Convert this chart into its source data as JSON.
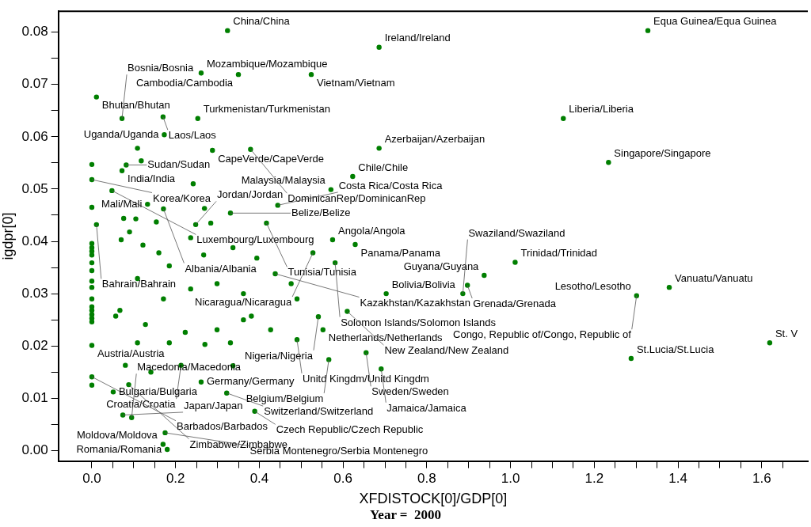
{
  "chart_data": {
    "type": "scatter",
    "title": "Year =  2000",
    "xlabel": "XFDISTOCK[0]/GDP[0]",
    "ylabel": "igdpr[0]",
    "color": "#007f00",
    "marker": "circle",
    "grid": false,
    "legend": false,
    "xlim": [
      -0.08,
      1.71
    ],
    "ylim": [
      -0.002,
      0.084
    ],
    "xticks": [
      {
        "value": 0,
        "label": "0.0"
      },
      {
        "value": 0.05,
        "label": null
      },
      {
        "value": 0.1,
        "label": null
      },
      {
        "value": 0.15,
        "label": null
      },
      {
        "value": 0.2,
        "label": "0.2"
      },
      {
        "value": 0.25,
        "label": null
      },
      {
        "value": 0.3,
        "label": null
      },
      {
        "value": 0.35,
        "label": null
      },
      {
        "value": 0.4,
        "label": "0.4"
      },
      {
        "value": 0.45,
        "label": null
      },
      {
        "value": 0.5,
        "label": null
      },
      {
        "value": 0.55,
        "label": null
      },
      {
        "value": 0.6,
        "label": "0.6"
      },
      {
        "value": 0.65,
        "label": null
      },
      {
        "value": 0.7,
        "label": null
      },
      {
        "value": 0.75,
        "label": null
      },
      {
        "value": 0.8,
        "label": "0.8"
      },
      {
        "value": 0.85,
        "label": null
      },
      {
        "value": 0.9,
        "label": null
      },
      {
        "value": 0.95,
        "label": null
      },
      {
        "value": 1,
        "label": "1.0"
      },
      {
        "value": 1.05,
        "label": null
      },
      {
        "value": 1.1,
        "label": null
      },
      {
        "value": 1.15,
        "label": null
      },
      {
        "value": 1.2,
        "label": "1.2"
      },
      {
        "value": 1.25,
        "label": null
      },
      {
        "value": 1.3,
        "label": null
      },
      {
        "value": 1.35,
        "label": null
      },
      {
        "value": 1.4,
        "label": "1.4"
      },
      {
        "value": 1.45,
        "label": null
      },
      {
        "value": 1.5,
        "label": null
      },
      {
        "value": 1.55,
        "label": null
      },
      {
        "value": 1.6,
        "label": "1.6"
      },
      {
        "value": 1.65,
        "label": null
      }
    ],
    "yticks": [
      {
        "value": 0,
        "label": "0.00"
      },
      {
        "value": 0.005,
        "label": null
      },
      {
        "value": 0.01,
        "label": "0.01"
      },
      {
        "value": 0.015,
        "label": null
      },
      {
        "value": 0.02,
        "label": "0.02"
      },
      {
        "value": 0.025,
        "label": null
      },
      {
        "value": 0.03,
        "label": "0.03"
      },
      {
        "value": 0.035,
        "label": null
      },
      {
        "value": 0.04,
        "label": "0.04"
      },
      {
        "value": 0.045,
        "label": null
      },
      {
        "value": 0.05,
        "label": "0.05"
      },
      {
        "value": 0.055,
        "label": null
      },
      {
        "value": 0.06,
        "label": "0.06"
      },
      {
        "value": 0.065,
        "label": null
      },
      {
        "value": 0.07,
        "label": "0.07"
      },
      {
        "value": 0.075,
        "label": null
      },
      {
        "value": 0.08,
        "label": "0.08"
      }
    ],
    "x": [
      0.324,
      0.686,
      0.261,
      0.35,
      0.524,
      0.011,
      0.072,
      0.17,
      0.253,
      0.173,
      0.109,
      0.288,
      0.379,
      0.686,
      0,
      0.082,
      0.072,
      0,
      0.623,
      0.048,
      0.571,
      0,
      0.133,
      0.171,
      0.269,
      0.444,
      0.331,
      0.011,
      0.076,
      0.105,
      0.248,
      0.284,
      0.417,
      0.154,
      0.242,
      0.118,
      1.328,
      1.126,
      1.234,
      1.011,
      0.937,
      0.897,
      0.886,
      1.301,
      1.379,
      1.288,
      1.619,
      0,
      0,
      0,
      0,
      0,
      0,
      0,
      0,
      0,
      0,
      0,
      0,
      0,
      0,
      0,
      0,
      0,
      0.575,
      0.629,
      0.07,
      0.09,
      0.438,
      0.581,
      0.703,
      0.61,
      0.541,
      0.381,
      0.067,
      0.057,
      0.27,
      0.08,
      0.213,
      0.337,
      0.141,
      0.261,
      0.088,
      0.051,
      0.322,
      0.389,
      0.074,
      0.175,
      0.128,
      0.223,
      0.299,
      0.362,
      0.171,
      0.236,
      0.109,
      0.299,
      0.362,
      0.49,
      0.185,
      0.267,
      0.394,
      0.16,
      0.122,
      0.236,
      0.337,
      0.476,
      0.528,
      0.552,
      0.427,
      0.49,
      0.331,
      0.109,
      0.185,
      0.655,
      0.566,
      0.691,
      0.095,
      0.17,
      0.18
    ],
    "values": [
      0.0803,
      0.0771,
      0.0722,
      0.0719,
      0.0719,
      0.0676,
      0.0635,
      0.0638,
      0.0635,
      0.0604,
      0.0578,
      0.0574,
      0.0576,
      0.0578,
      0.0547,
      0.0546,
      0.0535,
      0.0518,
      0.0524,
      0.0497,
      0.0499,
      0.0465,
      0.0471,
      0.0462,
      0.0463,
      0.0469,
      0.0454,
      0.0432,
      0.0444,
      0.0443,
      0.0432,
      0.0435,
      0.0435,
      0.0437,
      0.051,
      0.0554,
      0.0803,
      0.0635,
      0.0551,
      0.036,
      0.0335,
      0.0316,
      0.03,
      0.0296,
      0.0312,
      0.0176,
      0.0206,
      0.0396,
      0.0388,
      0.0381,
      0.0374,
      0.0359,
      0.0344,
      0.0324,
      0.0312,
      0.029,
      0.0275,
      0.0268,
      0.026,
      0.0253,
      0.0246,
      0.0201,
      0.0141,
      0.0125,
      0.0403,
      0.0394,
      0.0403,
      0.0418,
      0.0338,
      0.0359,
      0.03,
      0.0266,
      0.0256,
      0.0257,
      0.0268,
      0.0257,
      0.0203,
      0.0163,
      0.0163,
      0.0162,
      0.015,
      0.0131,
      0.0126,
      0.0112,
      0.011,
      0.0075,
      0.0068,
      0.0034,
      0.0241,
      0.0226,
      0.0231,
      0.025,
      0.029,
      0.0309,
      0.0329,
      0.0319,
      0.03,
      0.029,
      0.0353,
      0.0374,
      0.0368,
      0.0378,
      0.0393,
      0.0407,
      0.0388,
      0.0319,
      0.0378,
      0.0231,
      0.0231,
      0.0212,
      0.0206,
      0.0206,
      0.0206,
      0.0187,
      0.0174,
      0.0156,
      0.0063,
      0.0012,
      0.0002
    ],
    "annotations": [
      {
        "text": "China/China",
        "x": 0.324,
        "y": 0.0803
      },
      {
        "text": "Equa Guinea/Equa Guinea",
        "x": 1.328,
        "y": 0.0803
      },
      {
        "text": "Ireland/Ireland",
        "x": 0.686,
        "y": 0.0771
      },
      {
        "text": "Cambodia/Cambodia",
        "x": 0.35,
        "y": 0.0719
      },
      {
        "text": "Mozambique/Mozambique",
        "x": 0.261,
        "y": 0.0722
      },
      {
        "text": "Vietnam/Vietnam",
        "x": 0.524,
        "y": 0.0719
      },
      {
        "text": "Bhutan/Bhutan",
        "x": 0.011,
        "y": 0.0676
      },
      {
        "text": "Bosnia/Bosnia",
        "x": 0.072,
        "y": 0.0635
      },
      {
        "text": "Laos/Laos",
        "x": 0.17,
        "y": 0.0638
      },
      {
        "text": "Uganda/Uganda",
        "x": 0.173,
        "y": 0.0604
      },
      {
        "text": "Turkmenistan/Turkmenistan",
        "x": 0.253,
        "y": 0.0635
      },
      {
        "text": "Liberia/Liberia",
        "x": 1.126,
        "y": 0.0635
      },
      {
        "text": "Azerbaijan/Azerbaijan",
        "x": 0.686,
        "y": 0.0578
      },
      {
        "text": "Singapore/Singapore",
        "x": 1.234,
        "y": 0.0551
      },
      {
        "text": "India/India",
        "x": 0.072,
        "y": 0.0535
      },
      {
        "text": "Sudan/Sudan",
        "x": 0.082,
        "y": 0.0546
      },
      {
        "text": "CapeVerde/CapeVerde",
        "x": 0.288,
        "y": 0.0574
      },
      {
        "text": "DominicanRep/DominicanRep",
        "x": 0.379,
        "y": 0.0576
      },
      {
        "text": "Chile/Chile",
        "x": 0.623,
        "y": 0.0524
      },
      {
        "text": "Malaysia/Malaysia",
        "x": 0.571,
        "y": 0.0499
      },
      {
        "text": "Korea/Korea",
        "x": 0,
        "y": 0.0518
      },
      {
        "text": "Luxembourg/Luxembourg",
        "x": 0.048,
        "y": 0.0497
      },
      {
        "text": "Albania/Albania",
        "x": 0.171,
        "y": 0.0462
      },
      {
        "text": "Belize/Belize",
        "x": 0.331,
        "y": 0.0454
      },
      {
        "text": "Costa Rica/Costa Rica",
        "x": 0.444,
        "y": 0.0469
      },
      {
        "text": "Mali/Mali",
        "x": 0.133,
        "y": 0.0471
      },
      {
        "text": "Bahrain/Bahrain",
        "x": 0.011,
        "y": 0.0432
      },
      {
        "text": "Jordan/Jordan",
        "x": 0.248,
        "y": 0.0432
      },
      {
        "text": "Tunisia/Tunisia",
        "x": 0.417,
        "y": 0.0435
      },
      {
        "text": "Angola/Angola",
        "x": 0.575,
        "y": 0.0403
      },
      {
        "text": "Nicaragua/Nicaragua",
        "x": 0.528,
        "y": 0.0378
      },
      {
        "text": "Panama/Panama",
        "x": 0.629,
        "y": 0.0394
      },
      {
        "text": "Solomon Islands/Solomon Islands",
        "x": 0.581,
        "y": 0.0359
      },
      {
        "text": "Guyana/Guyana",
        "x": 0.937,
        "y": 0.0335
      },
      {
        "text": "Trinidad/Trinidad",
        "x": 1.011,
        "y": 0.036
      },
      {
        "text": "Bolivia/Bolivia",
        "x": 0.703,
        "y": 0.03
      },
      {
        "text": "Kazakhstan/Kazakhstan",
        "x": 0.438,
        "y": 0.0338
      },
      {
        "text": "Congo, Republic of/Congo, Republic of",
        "x": 1.301,
        "y": 0.0296
      },
      {
        "text": "Vanuatu/Vanuatu",
        "x": 1.379,
        "y": 0.0312
      },
      {
        "text": "Lesotho/Lesotho",
        "x": 1.301,
        "y": 0.0296
      },
      {
        "text": "Grenada/Grenada",
        "x": 0.897,
        "y": 0.0316
      },
      {
        "text": "Swaziland/Swaziland",
        "x": 0.886,
        "y": 0.03
      },
      {
        "text": "New Zealand/New Zealand",
        "x": 0.61,
        "y": 0.0266
      },
      {
        "text": "Netherlands/Netherlands",
        "x": 0.552,
        "y": 0.0231
      },
      {
        "text": "Nigeria/Nigeria",
        "x": 0.541,
        "y": 0.0256
      },
      {
        "text": "Unitd Kingdm/Unitd Kingdm",
        "x": 0.49,
        "y": 0.0212
      },
      {
        "text": "Sweden/Sweden",
        "x": 0.655,
        "y": 0.0187
      },
      {
        "text": "Belgium/Belgium",
        "x": 0.566,
        "y": 0.0174
      },
      {
        "text": "Jamaica/Jamaica",
        "x": 0.691,
        "y": 0.0156
      },
      {
        "text": "Croatia/Croatia",
        "x": 0.213,
        "y": 0.0163
      },
      {
        "text": "Austria/Austria",
        "x": 0,
        "y": 0.0201
      },
      {
        "text": "Barbados/Barbados",
        "x": 0,
        "y": 0.0141
      },
      {
        "text": "Germany/Germany",
        "x": 0.261,
        "y": 0.0131
      },
      {
        "text": "Zimbabwe/Zimbabwe",
        "x": 0.088,
        "y": 0.0126
      },
      {
        "text": "Bulgaria/Bulgaria",
        "x": 0.051,
        "y": 0.0112
      },
      {
        "text": "Japan/Japan",
        "x": 0.074,
        "y": 0.0068
      },
      {
        "text": "Switzerland/Switzerland",
        "x": 0.322,
        "y": 0.011
      },
      {
        "text": "Czech Republic/Czech Republic",
        "x": 0.389,
        "y": 0.0075
      },
      {
        "text": "Macedonia/Macedonia",
        "x": 0.095,
        "y": 0.0063
      },
      {
        "text": "Serbia Montenegro/Serbia Montenegro",
        "x": 0.175,
        "y": 0.0034
      },
      {
        "text": "Moldova/Moldova",
        "x": 0.17,
        "y": 0.0012
      },
      {
        "text": "Romania/Romania",
        "x": 0.18,
        "y": 0.0002
      },
      {
        "text": "St.Lucia/St.Lucia",
        "x": 1.288,
        "y": 0.0176
      },
      {
        "text": "St. V",
        "x": 1.619,
        "y": 0.0206
      }
    ]
  }
}
